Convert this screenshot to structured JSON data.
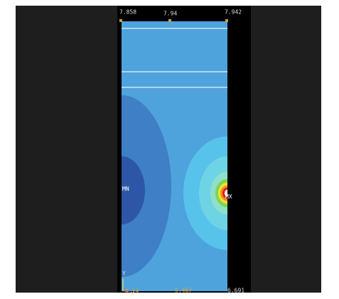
{
  "plot": {
    "top_labels": [
      "7.858",
      "7.94",
      "7.942"
    ],
    "bottom_labels": [
      "4.14",
      "5.467",
      "6.691"
    ],
    "min_marker": "MN",
    "max_marker": "MX",
    "axis_x": "X",
    "axis_y": "Y"
  }
}
